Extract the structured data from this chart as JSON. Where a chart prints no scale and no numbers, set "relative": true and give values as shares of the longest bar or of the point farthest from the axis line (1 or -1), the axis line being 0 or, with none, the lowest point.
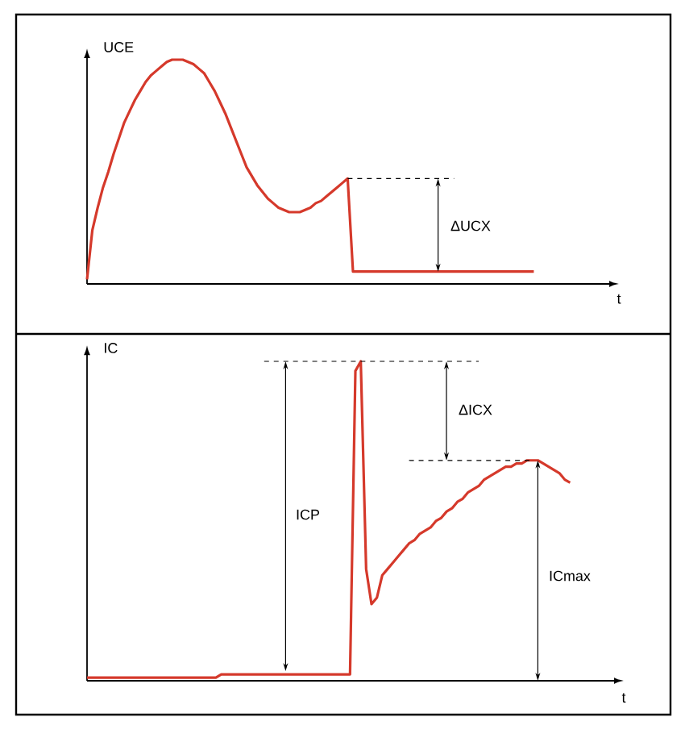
{
  "chart_data": [
    {
      "type": "line",
      "relative": true,
      "ylabel": "UCE",
      "xlabel": "t",
      "marker": "none",
      "categories": [
        null,
        null,
        null,
        null,
        null,
        null,
        null,
        null,
        null,
        null,
        null,
        null,
        null,
        null,
        null,
        null,
        null,
        null,
        null,
        null,
        null,
        null,
        null,
        null,
        null,
        null,
        null,
        null,
        null,
        null,
        null,
        null,
        null,
        null,
        null,
        null,
        null,
        null,
        null,
        null,
        null,
        null,
        null,
        null,
        null,
        null,
        null,
        null,
        null,
        null,
        null,
        null,
        null,
        null,
        null,
        null,
        null,
        null,
        null,
        null,
        null,
        null,
        null,
        null,
        null,
        null,
        null,
        null,
        null,
        null,
        null,
        null,
        null,
        null,
        null,
        null,
        null,
        null,
        null,
        null,
        null,
        null,
        null,
        null,
        null
      ],
      "series": [
        {
          "color": "#d5392b",
          "line_style": "solid",
          "values": [
            0.02,
            0.24,
            0.34,
            0.43,
            0.5,
            0.58,
            0.65,
            0.72,
            0.77,
            0.82,
            0.86,
            0.9,
            0.93,
            0.95,
            0.97,
            0.99,
            1,
            1,
            1,
            0.99,
            0.98,
            0.96,
            0.94,
            0.9,
            0.86,
            0.81,
            0.76,
            0.7,
            0.64,
            0.58,
            0.52,
            0.48,
            0.44,
            0.41,
            0.38,
            0.36,
            0.34,
            0.33,
            0.32,
            0.32,
            0.32,
            0.33,
            0.34,
            0.36,
            0.37,
            0.39,
            0.41,
            0.43,
            0.45,
            0.47,
            0.055,
            0.055,
            0.055,
            0.055,
            0.055,
            0.055,
            0.055,
            0.055,
            0.055,
            0.055,
            0.055,
            0.055,
            0.055,
            0.055,
            0.055,
            0.055,
            0.055,
            0.055,
            0.055,
            0.055,
            0.055,
            0.055,
            0.055,
            0.055,
            0.055,
            0.055,
            0.055,
            0.055,
            0.055,
            0.055,
            0.055,
            0.055,
            0.055,
            0.055,
            0.055
          ]
        }
      ],
      "annotations": [
        "ΔUCX"
      ]
    },
    {
      "type": "line",
      "relative": true,
      "ylabel": "IC",
      "xlabel": "t",
      "marker": "none",
      "categories": [
        null,
        null,
        null,
        null,
        null,
        null,
        null,
        null,
        null,
        null,
        null,
        null,
        null,
        null,
        null,
        null,
        null,
        null,
        null,
        null,
        null,
        null,
        null,
        null,
        null,
        null,
        null,
        null,
        null,
        null,
        null,
        null,
        null,
        null,
        null,
        null,
        null,
        null,
        null,
        null,
        null,
        null,
        null,
        null,
        null,
        null,
        null,
        null,
        null,
        null,
        null,
        null,
        null,
        null,
        null,
        null,
        null,
        null,
        null,
        null,
        null,
        null,
        null,
        null,
        null,
        null,
        null,
        null,
        null,
        null,
        null,
        null,
        null,
        null,
        null,
        null,
        null,
        null,
        null,
        null,
        null,
        null,
        null,
        null,
        null,
        null,
        null,
        null,
        null,
        null,
        null
      ],
      "series": [
        {
          "color": "#d5392b",
          "line_style": "solid",
          "values": [
            0.01,
            0.01,
            0.01,
            0.01,
            0.01,
            0.01,
            0.01,
            0.01,
            0.01,
            0.01,
            0.01,
            0.01,
            0.01,
            0.01,
            0.01,
            0.01,
            0.01,
            0.01,
            0.01,
            0.01,
            0.01,
            0.01,
            0.01,
            0.01,
            0.01,
            0.02,
            0.02,
            0.02,
            0.02,
            0.02,
            0.02,
            0.02,
            0.02,
            0.02,
            0.02,
            0.02,
            0.02,
            0.02,
            0.02,
            0.02,
            0.02,
            0.02,
            0.02,
            0.02,
            0.02,
            0.02,
            0.02,
            0.02,
            0.02,
            0.02,
            0.97,
            1,
            0.35,
            0.24,
            0.26,
            0.33,
            0.35,
            0.37,
            0.39,
            0.41,
            0.43,
            0.44,
            0.46,
            0.47,
            0.48,
            0.5,
            0.51,
            0.53,
            0.54,
            0.56,
            0.57,
            0.59,
            0.6,
            0.61,
            0.63,
            0.64,
            0.65,
            0.66,
            0.67,
            0.67,
            0.68,
            0.68,
            0.69,
            0.69,
            0.69,
            0.68,
            0.67,
            0.66,
            0.65,
            0.63,
            0.62
          ]
        }
      ],
      "annotations": [
        "ICP",
        "ΔICX",
        "ICmax"
      ]
    }
  ]
}
